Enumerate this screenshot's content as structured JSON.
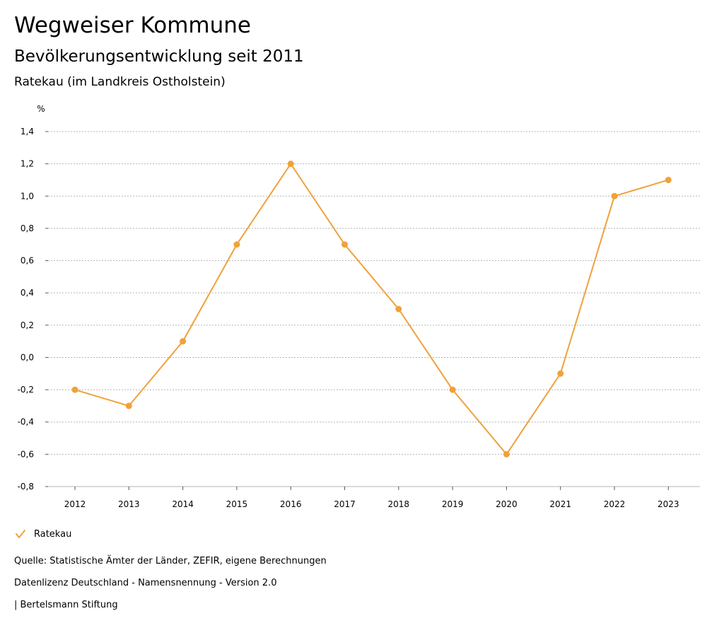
{
  "title": "Wegweiser Kommune",
  "subtitle": "Bevölkerungsentwicklung seit 2011",
  "location": "Ratekau (im Landkreis Ostholstein)",
  "colors": {
    "series": "#f0a13b",
    "grid": "#b5b5b5",
    "axis": "#555555"
  },
  "legend": {
    "label": "Ratekau",
    "icon": "check-icon"
  },
  "footer": {
    "source": "Quelle: Statistische Ämter der Länder, ZEFIR, eigene Berechnungen",
    "license": "Datenlizenz Deutschland - Namensnennung - Version 2.0",
    "publisher": "| Bertelsmann Stiftung"
  },
  "chart_data": {
    "type": "line",
    "ylabel": "%",
    "xlabel": "",
    "ylim": [
      -0.8,
      1.4
    ],
    "yticks": [
      -0.8,
      -0.6,
      -0.4,
      -0.2,
      0.0,
      0.2,
      0.4,
      0.6,
      0.8,
      1.0,
      1.2,
      1.4
    ],
    "ytick_labels": [
      "-0,8",
      "-0,6",
      "-0,4",
      "-0,2",
      "0,0",
      "0,2",
      "0,4",
      "0,6",
      "0,8",
      "1,0",
      "1,2",
      "1,4"
    ],
    "grid": true,
    "legend_position": "bottom-left",
    "categories": [
      "2012",
      "2013",
      "2014",
      "2015",
      "2016",
      "2017",
      "2018",
      "2019",
      "2020",
      "2021",
      "2022",
      "2023"
    ],
    "series": [
      {
        "name": "Ratekau",
        "values": [
          -0.2,
          -0.3,
          0.1,
          0.7,
          1.2,
          0.7,
          0.3,
          -0.2,
          -0.6,
          -0.1,
          1.0,
          1.1
        ]
      }
    ]
  }
}
